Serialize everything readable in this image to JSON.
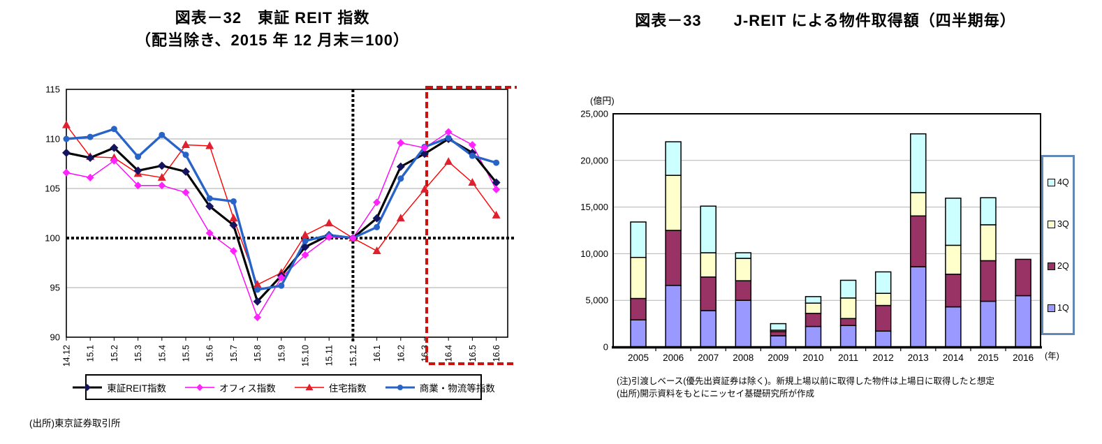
{
  "left_panel": {
    "title_line1": "図表－32　東証 REIT 指数",
    "title_line2": "（配当除き、2015 年 12 月末＝100）",
    "source": "(出所)東京証券取引所"
  },
  "right_panel": {
    "title": "図表－33　　J-REIT による物件取得額（四半期毎）",
    "unit_label": "(億円)",
    "year_suffix": "(年)",
    "note1": "(注)引渡しベース(優先出資証券は除く)。新規上場以前に取得した物件は上場日に取得したと想定",
    "note2": "(出所)開示資料をもとにニッセイ基礎研究所が作成"
  },
  "chart_data": [
    {
      "id": "tosho-reit-index",
      "type": "line",
      "title": "図表－32 東証 REIT 指数（配当除き、2015年12月末＝100）",
      "x": [
        "14.12",
        "15.1",
        "15.2",
        "15.3",
        "15.4",
        "15.5",
        "15.6",
        "15.7",
        "15.8",
        "15.9",
        "15.10",
        "15.11",
        "15.12",
        "16.1",
        "16.2",
        "16.3",
        "16.4",
        "16.5",
        "16.6"
      ],
      "ylim": [
        90,
        115
      ],
      "yticks": [
        90,
        95,
        100,
        105,
        110,
        115
      ],
      "grid_color": "#A8A8A8",
      "baseline": {
        "value": 100,
        "style": "bold-dotted"
      },
      "vline": {
        "x": "15.12",
        "style": "bold-dotted"
      },
      "highlight": {
        "x_start": "16.4",
        "x_end": "16.6",
        "style": "dashed-box",
        "color": "#CC1111"
      },
      "legend_position": "bottom",
      "series": [
        {
          "id": "tse-reit",
          "name": "東証REIT指数",
          "color": "#000000",
          "marker": "diamond",
          "marker_color": "#14145F",
          "width": 3.2,
          "msize": 6,
          "values": [
            108.6,
            108.1,
            109.1,
            106.8,
            107.3,
            106.7,
            103.2,
            101.3,
            93.6,
            96.2,
            99.1,
            100.3,
            100,
            102,
            107.2,
            108.5,
            110,
            108.6,
            105.6
          ]
        },
        {
          "id": "office",
          "name": "オフィス指数",
          "color": "#FF00FF",
          "marker": "diamond",
          "marker_color": "#FF22FF",
          "width": 1.4,
          "msize": 5.5,
          "values": [
            106.6,
            106.1,
            107.8,
            105.3,
            105.3,
            104.6,
            100.5,
            98.7,
            92,
            96,
            98.3,
            100.1,
            100,
            103.6,
            109.6,
            109.1,
            110.7,
            109.4,
            104.9
          ]
        },
        {
          "id": "residential",
          "name": "住宅指数",
          "color": "#FF0000",
          "marker": "triangle",
          "marker_color": "#E0202E",
          "width": 1.4,
          "msize": 6,
          "values": [
            111.4,
            108.2,
            108.1,
            106.5,
            106.1,
            109.4,
            109.3,
            102,
            95.3,
            96.5,
            100.3,
            101.5,
            100,
            98.7,
            102,
            104.9,
            107.7,
            105.6,
            102.3
          ]
        },
        {
          "id": "commerce-logistics",
          "name": "商業・物流等指数",
          "color": "#2864C8",
          "marker": "circle",
          "marker_color": "#2864C8",
          "width": 3.4,
          "msize": 4.5,
          "values": [
            110,
            110.2,
            111,
            108.2,
            110.4,
            108.4,
            104,
            103.7,
            94.8,
            95.2,
            99.7,
            100.3,
            100,
            101.1,
            106,
            109.2,
            110.1,
            108.3,
            107.6
          ]
        }
      ]
    },
    {
      "id": "jreit-property-acquisitions",
      "type": "bar",
      "stacked": true,
      "title": "図表－33 J-REITによる物件取得額（四半期毎）",
      "ylabel": "(億円)",
      "categories": [
        "2005",
        "2006",
        "2007",
        "2008",
        "2009",
        "2010",
        "2011",
        "2012",
        "2013",
        "2014",
        "2015",
        "2016"
      ],
      "ylim": [
        0,
        25000
      ],
      "yticks": [
        0,
        5000,
        10000,
        15000,
        20000,
        25000
      ],
      "grid_color": "#B3B3B3",
      "legend_position": "right",
      "legend_order_top_to_bottom": [
        "4Q",
        "3Q",
        "2Q",
        "1Q"
      ],
      "legend_border_color": "#6288B5",
      "series": [
        {
          "id": "q1",
          "name": "1Q",
          "color": "#9999FF",
          "values": [
            2900,
            6600,
            3900,
            5000,
            1200,
            2200,
            2300,
            1700,
            8600,
            4300,
            4900,
            5500
          ]
        },
        {
          "id": "q2",
          "name": "2Q",
          "color": "#993366",
          "values": [
            2300,
            5900,
            3600,
            2100,
            450,
            1400,
            750,
            2750,
            5450,
            3500,
            4350,
            3900
          ]
        },
        {
          "id": "q3",
          "name": "3Q",
          "color": "#FFFFCC",
          "values": [
            4400,
            5900,
            2600,
            2400,
            150,
            1100,
            2200,
            1300,
            2500,
            3100,
            3850,
            0
          ]
        },
        {
          "id": "q4",
          "name": "4Q",
          "color": "#CCFFFF",
          "values": [
            3800,
            3600,
            5000,
            600,
            700,
            700,
            1900,
            2300,
            6300,
            5050,
            2900,
            0
          ]
        }
      ]
    }
  ]
}
